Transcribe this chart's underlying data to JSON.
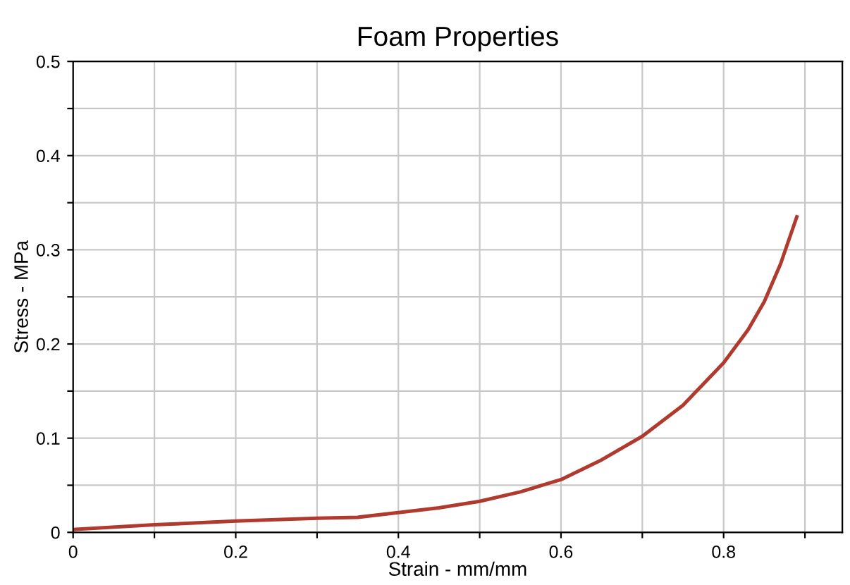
{
  "chart_data": {
    "type": "line",
    "title": "Foam Properties",
    "xlabel": "Strain - mm/mm",
    "ylabel": "Stress - MPa",
    "xlim": [
      0,
      0.946
    ],
    "ylim": [
      0,
      0.5
    ],
    "xticks": [
      0,
      {
        "value": 0.1,
        "label": null
      },
      0.2,
      {
        "value": 0.3,
        "label": null
      },
      0.4,
      {
        "value": 0.5,
        "label": null
      },
      0.6,
      {
        "value": 0.7,
        "label": null
      },
      0.8,
      {
        "value": 0.9,
        "label": null
      }
    ],
    "yticks": [
      0,
      {
        "value": 0.05,
        "label": null
      },
      0.1,
      {
        "value": 0.15,
        "label": null
      },
      0.2,
      {
        "value": 0.25,
        "label": null
      },
      0.3,
      {
        "value": 0.35,
        "label": null
      },
      0.4,
      {
        "value": 0.45,
        "label": null
      },
      0.5
    ],
    "grid": true,
    "line_style": "solid",
    "marker": "none",
    "series": [
      {
        "color": "#b03a2e",
        "x": [
          0,
          0.1,
          0.2,
          0.3,
          0.35,
          0.4,
          0.45,
          0.5,
          0.55,
          0.6,
          0.65,
          0.7,
          0.75,
          0.8,
          0.83,
          0.85,
          0.87,
          0.89
        ],
        "values": [
          0.003,
          0.008,
          0.012,
          0.015,
          0.016,
          0.021,
          0.026,
          0.033,
          0.043,
          0.056,
          0.077,
          0.102,
          0.135,
          0.18,
          0.215,
          0.245,
          0.285,
          0.335
        ]
      }
    ]
  }
}
